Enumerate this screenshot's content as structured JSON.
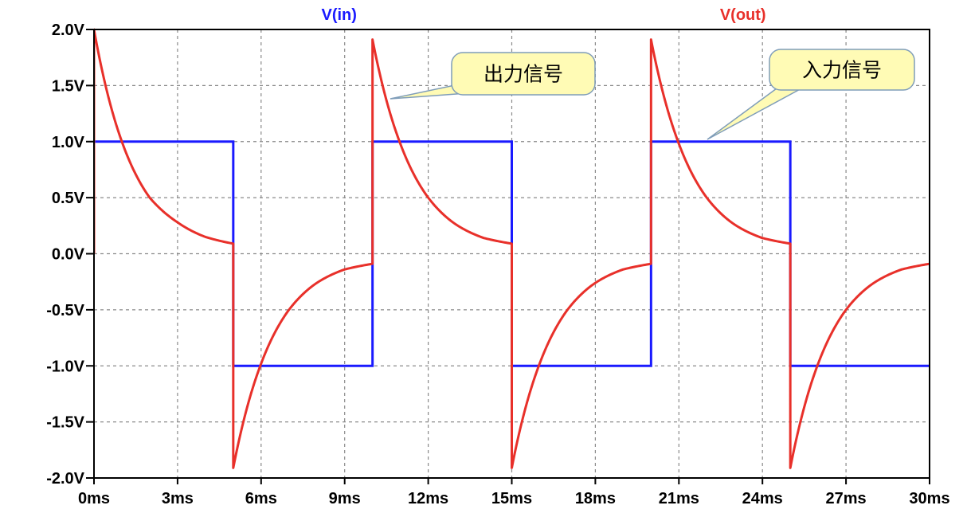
{
  "chart_data": {
    "type": "line",
    "title": "",
    "xlabel": "",
    "ylabel": "",
    "xlim": [
      0,
      30
    ],
    "ylim": [
      -2.0,
      2.0
    ],
    "grid": true,
    "x_ticks": [
      "0ms",
      "3ms",
      "6ms",
      "9ms",
      "12ms",
      "15ms",
      "18ms",
      "21ms",
      "24ms",
      "27ms",
      "30ms"
    ],
    "x_tick_values": [
      0,
      3,
      6,
      9,
      12,
      15,
      18,
      21,
      24,
      27,
      30
    ],
    "y_ticks": [
      "2.0V",
      "1.5V",
      "1.0V",
      "0.5V",
      "0.0V",
      "-0.5V",
      "-1.0V",
      "-1.5V",
      "-2.0V"
    ],
    "y_tick_values": [
      2.0,
      1.5,
      1.0,
      0.5,
      0.0,
      -0.5,
      -1.0,
      -1.5,
      -2.0
    ],
    "series": [
      {
        "name": "V(in)",
        "color": "#1a1aff",
        "x": [
          0,
          0,
          5,
          5,
          10,
          10,
          15,
          15,
          20,
          20,
          25,
          25,
          30
        ],
        "y": [
          0,
          1,
          1,
          -1,
          -1,
          1,
          1,
          -1,
          -1,
          1,
          1,
          -1,
          -1
        ]
      },
      {
        "name": "V(out)",
        "color": "#e8302a",
        "x": [
          0,
          0,
          1,
          2,
          3,
          4,
          5,
          5,
          6,
          7,
          8,
          9,
          10,
          10,
          11,
          12,
          13,
          14,
          15,
          15,
          16,
          17,
          18,
          19,
          20,
          20,
          21,
          22,
          23,
          24,
          25,
          25,
          26,
          27,
          28,
          29,
          30
        ],
        "y": [
          0,
          2.0,
          1.0,
          0.5,
          0.28,
          0.15,
          0.09,
          -1.91,
          -0.98,
          -0.5,
          -0.26,
          -0.14,
          -0.09,
          1.91,
          0.98,
          0.5,
          0.26,
          0.14,
          0.09,
          -1.91,
          -0.98,
          -0.5,
          -0.26,
          -0.14,
          -0.09,
          1.91,
          0.98,
          0.5,
          0.26,
          0.14,
          0.09,
          -1.91,
          -0.98,
          -0.5,
          -0.26,
          -0.14,
          -0.09
        ]
      }
    ],
    "annotations": [
      {
        "text": "出力信号",
        "points_to": "V(out)"
      },
      {
        "text": "入力信号",
        "points_to": "V(in)"
      }
    ]
  }
}
